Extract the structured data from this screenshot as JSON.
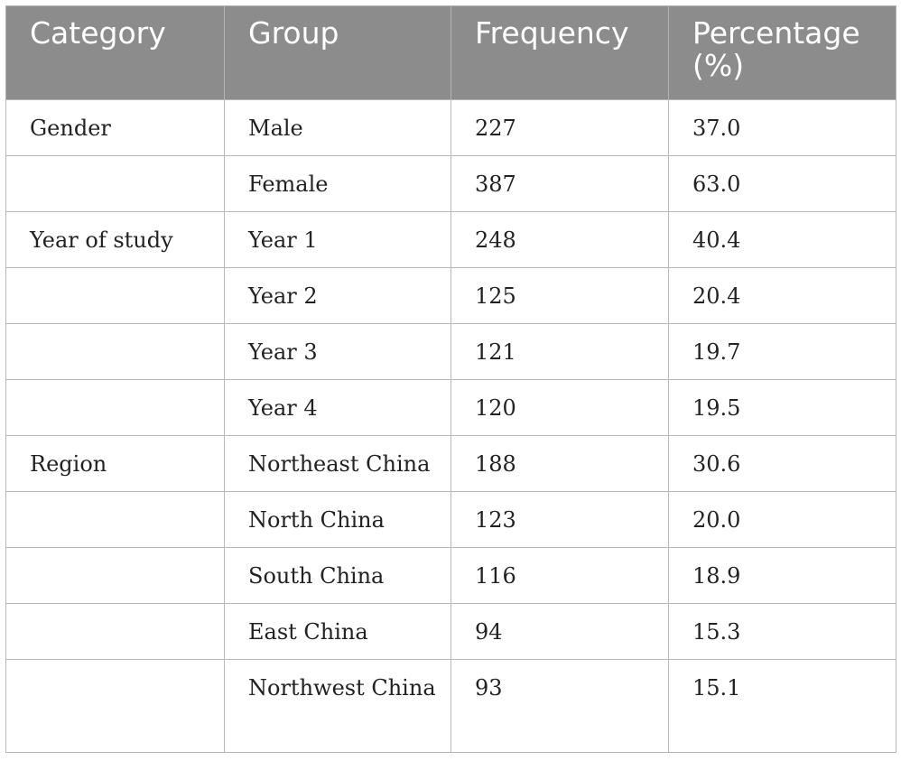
{
  "table": {
    "headers": [
      "Category",
      "Group",
      "Frequency",
      "Percentage (%)"
    ],
    "rows": [
      {
        "category": "Gender",
        "group": "Male",
        "frequency": "227",
        "percentage": "37.0"
      },
      {
        "category": "",
        "group": "Female",
        "frequency": "387",
        "percentage": "63.0"
      },
      {
        "category": "Year of study",
        "group": "Year 1",
        "frequency": "248",
        "percentage": "40.4"
      },
      {
        "category": "",
        "group": "Year 2",
        "frequency": "125",
        "percentage": "20.4"
      },
      {
        "category": "",
        "group": "Year 3",
        "frequency": "121",
        "percentage": "19.7"
      },
      {
        "category": "",
        "group": "Year 4",
        "frequency": "120",
        "percentage": "19.5"
      },
      {
        "category": "Region",
        "group": "Northeast China",
        "frequency": "188",
        "percentage": "30.6"
      },
      {
        "category": "",
        "group": "North China",
        "frequency": "123",
        "percentage": "20.0"
      },
      {
        "category": "",
        "group": "South China",
        "frequency": "116",
        "percentage": "18.9"
      },
      {
        "category": "",
        "group": "East China",
        "frequency": "94",
        "percentage": "15.3"
      },
      {
        "category": "",
        "group": "Northwest China",
        "frequency": "93",
        "percentage": "15.1"
      }
    ]
  },
  "colors": {
    "header_background": "#8c8c8c",
    "header_text": "#ffffff",
    "grid_lines": "#b8b8b8",
    "body_text": "#222222"
  }
}
